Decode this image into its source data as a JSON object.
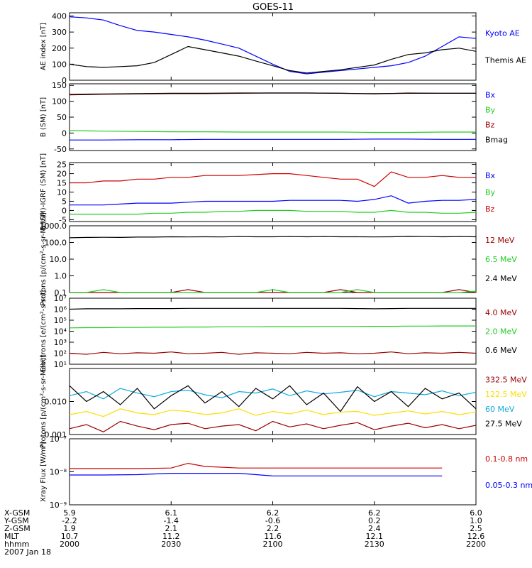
{
  "title": "GOES-11",
  "colors": {
    "black": "#000000",
    "blue": "#0000ff",
    "green": "#22cc22",
    "red": "#cc0000",
    "darkred": "#990000",
    "yellow": "#ffdd00",
    "cyan": "#11aadd"
  },
  "footer": {
    "row_labels": [
      "X-GSM",
      "Y-GSM",
      "Z-GSM",
      "MLT",
      "hhmm",
      "2007 Jan 18"
    ],
    "columns": [
      {
        "time": "2000",
        "values": [
          "5.9",
          "-2.2",
          "1.9",
          "10.7"
        ]
      },
      {
        "time": "2030",
        "values": [
          "6.1",
          "-1.4",
          "2.1",
          "11.2"
        ]
      },
      {
        "time": "2100",
        "values": [
          "6.2",
          "-0.6",
          "2.2",
          "11.6"
        ]
      },
      {
        "time": "2130",
        "values": [
          "6.2",
          "0.2",
          "2.4",
          "12.1"
        ]
      },
      {
        "time": "2200",
        "values": [
          "6.0",
          "1.0",
          "2.5",
          "12.6"
        ]
      }
    ]
  },
  "chart_data": [
    {
      "type": "line",
      "ylabel": "AE index [nT]",
      "scale": "linear",
      "ylim": [
        0,
        420
      ],
      "yticks": [
        {
          "v": 0,
          "t": "0"
        },
        {
          "v": 100,
          "t": "100"
        },
        {
          "v": 200,
          "t": "200"
        },
        {
          "v": 300,
          "t": "300"
        },
        {
          "v": 400,
          "t": "400"
        }
      ],
      "x": [
        0,
        5,
        10,
        15,
        20,
        25,
        30,
        35,
        40,
        45,
        50,
        55,
        60,
        65,
        70,
        75,
        80,
        85,
        90,
        95,
        100,
        105,
        110,
        115,
        120
      ],
      "series": [
        {
          "name": "Kyoto AE",
          "color": "blue",
          "values": [
            395,
            388,
            375,
            340,
            310,
            300,
            285,
            270,
            250,
            225,
            200,
            150,
            100,
            55,
            40,
            50,
            60,
            70,
            80,
            90,
            110,
            150,
            210,
            270,
            260
          ]
        },
        {
          "name": "Themis AE",
          "color": "black",
          "values": [
            100,
            85,
            80,
            85,
            90,
            110,
            160,
            210,
            190,
            170,
            150,
            120,
            90,
            60,
            45,
            55,
            65,
            80,
            95,
            130,
            160,
            170,
            190,
            200,
            180
          ]
        }
      ]
    },
    {
      "type": "line",
      "ylabel": "B (SM) [nT]",
      "scale": "linear",
      "ylim": [
        -55,
        155
      ],
      "yticks": [
        {
          "v": -50,
          "t": "-50"
        },
        {
          "v": 0,
          "t": "0"
        },
        {
          "v": 50,
          "t": "50"
        },
        {
          "v": 100,
          "t": "100"
        },
        {
          "v": 150,
          "t": "150"
        }
      ],
      "x": [
        0,
        10,
        20,
        30,
        40,
        50,
        60,
        70,
        80,
        90,
        100,
        110,
        120
      ],
      "series": [
        {
          "name": "Bx",
          "color": "blue",
          "values": [
            -22,
            -22,
            -21,
            -21,
            -20,
            -20,
            -20,
            -20,
            -20,
            -19,
            -19,
            -20,
            -20
          ]
        },
        {
          "name": "By",
          "color": "green",
          "values": [
            8,
            6,
            5,
            4,
            4,
            3,
            3,
            3,
            3,
            2,
            2,
            3,
            3
          ]
        },
        {
          "name": "Bz",
          "color": "darkred",
          "values": [
            120,
            122,
            123,
            124,
            124,
            125,
            126,
            126,
            125,
            123,
            126,
            125,
            125
          ]
        },
        {
          "name": "Bmag",
          "color": "black",
          "values": [
            122,
            123,
            124,
            125,
            125,
            126,
            126,
            126,
            125,
            124,
            125,
            125,
            125
          ]
        }
      ]
    },
    {
      "type": "line",
      "ylabel": "B (SM)-IGRF (SM) [nT]",
      "scale": "linear",
      "ylim": [
        -6,
        26
      ],
      "yticks": [
        {
          "v": -5,
          "t": "-5"
        },
        {
          "v": 0,
          "t": "0"
        },
        {
          "v": 5,
          "t": "5"
        },
        {
          "v": 10,
          "t": "10"
        },
        {
          "v": 15,
          "t": "15"
        },
        {
          "v": 20,
          "t": "20"
        },
        {
          "v": 25,
          "t": "25"
        }
      ],
      "x": [
        0,
        5,
        10,
        15,
        20,
        25,
        30,
        35,
        40,
        45,
        50,
        55,
        60,
        65,
        70,
        75,
        80,
        85,
        90,
        95,
        100,
        105,
        110,
        115,
        120
      ],
      "series": [
        {
          "name": "Bx",
          "color": "blue",
          "values": [
            3,
            3,
            3,
            3.5,
            4,
            4,
            4,
            4.5,
            5,
            5,
            5,
            5,
            5,
            5.5,
            5.5,
            5.5,
            5.5,
            5,
            6,
            8,
            4,
            5,
            5.5,
            5.5,
            6
          ]
        },
        {
          "name": "By",
          "color": "green",
          "values": [
            -2,
            -2,
            -2,
            -2,
            -2,
            -1.5,
            -1.5,
            -1,
            -1,
            -0.5,
            -0.5,
            0,
            0,
            0,
            -0.5,
            -0.5,
            -0.5,
            -1,
            -1,
            0,
            -1,
            -1,
            -1.5,
            -1.5,
            -1
          ]
        },
        {
          "name": "Bz",
          "color": "red",
          "values": [
            15,
            15,
            16,
            16,
            17,
            17,
            18,
            18,
            19,
            19,
            19,
            19.5,
            20,
            20,
            19,
            18,
            17,
            17,
            13,
            21,
            18,
            18,
            19,
            18,
            18
          ]
        }
      ]
    },
    {
      "type": "line",
      "ylabel": "Protons [p/(cm²-s-sr-MeV)]",
      "scale": "log",
      "ylim": [
        0.1,
        1000
      ],
      "yticks": [
        {
          "v": 0.1,
          "t": "0.1"
        },
        {
          "v": 1,
          "t": "1.0"
        },
        {
          "v": 10,
          "t": "10.0"
        },
        {
          "v": 100,
          "t": "100.0"
        },
        {
          "v": 1000,
          "t": "1000.0"
        }
      ],
      "x": [
        0,
        5,
        10,
        15,
        20,
        25,
        30,
        35,
        40,
        45,
        50,
        55,
        60,
        65,
        70,
        75,
        80,
        85,
        90,
        95,
        100,
        105,
        110,
        115,
        120
      ],
      "series": [
        {
          "name": "12 MeV",
          "color": "darkred",
          "values": [
            0.1,
            0.1,
            0.1,
            0.1,
            0.1,
            0.1,
            0.1,
            0.15,
            0.1,
            0.1,
            0.1,
            0.1,
            0.1,
            0.1,
            0.1,
            0.1,
            0.15,
            0.1,
            0.1,
            0.1,
            0.1,
            0.1,
            0.1,
            0.15,
            0.1
          ]
        },
        {
          "name": "6.5 MeV",
          "color": "green",
          "values": [
            0.1,
            0.1,
            0.15,
            0.1,
            0.1,
            0.1,
            0.1,
            0.1,
            0.1,
            0.1,
            0.1,
            0.1,
            0.15,
            0.1,
            0.1,
            0.1,
            0.1,
            0.15,
            0.1,
            0.1,
            0.1,
            0.1,
            0.1,
            0.1,
            0.12
          ]
        },
        {
          "name": "2.4 MeV",
          "color": "black",
          "values": [
            190,
            200,
            205,
            200,
            210,
            210,
            220,
            215,
            220,
            215,
            225,
            220,
            220,
            225,
            220,
            225,
            220,
            220,
            215,
            220,
            230,
            225,
            220,
            225,
            220
          ]
        }
      ]
    },
    {
      "type": "line",
      "ylabel": "Electrons [e/(cm²-s-sr)]",
      "scale": "log",
      "ylim": [
        10,
        10000000
      ],
      "yticks": [
        {
          "v": 10,
          "t": "10¹"
        },
        {
          "v": 100,
          "t": "10²"
        },
        {
          "v": 1000,
          "t": "10³"
        },
        {
          "v": 10000,
          "t": "10⁴"
        },
        {
          "v": 100000,
          "t": "10⁵"
        },
        {
          "v": 1000000,
          "t": "10⁶"
        },
        {
          "v": 10000000,
          "t": "10⁷"
        }
      ],
      "x": [
        0,
        5,
        10,
        15,
        20,
        25,
        30,
        35,
        40,
        45,
        50,
        55,
        60,
        65,
        70,
        75,
        80,
        85,
        90,
        95,
        100,
        105,
        110,
        115,
        120
      ],
      "series": [
        {
          "name": "4.0 MeV",
          "color": "darkred",
          "values": [
            100,
            80,
            120,
            90,
            110,
            100,
            130,
            90,
            100,
            120,
            80,
            110,
            100,
            90,
            120,
            100,
            110,
            90,
            100,
            130,
            90,
            110,
            100,
            120,
            100
          ]
        },
        {
          "name": "2.0 MeV",
          "color": "green",
          "values": [
            20000,
            21000,
            21000,
            22000,
            22000,
            23000,
            23000,
            24000,
            24000,
            25000,
            25000,
            25000,
            26000,
            26000,
            26000,
            27000,
            27000,
            27000,
            28000,
            28000,
            29000,
            29000,
            30000,
            30000,
            30000
          ]
        },
        {
          "name": "0.6 MeV",
          "color": "black",
          "values": [
            1000000,
            1100000,
            1100000,
            1100000,
            1150000,
            1150000,
            1150000,
            1200000,
            1200000,
            1200000,
            1200000,
            1200000,
            1200000,
            1200000,
            1200000,
            1200000,
            1200000,
            1150000,
            1100000,
            1150000,
            1200000,
            1200000,
            1200000,
            1200000,
            1200000
          ]
        }
      ]
    },
    {
      "type": "line",
      "ylabel": "Protons [p/(cm²-s-sr-MeV)]",
      "scale": "log",
      "ylim": [
        0.001,
        0.1
      ],
      "yticks": [
        {
          "v": 0.001,
          "t": "0.001"
        },
        {
          "v": 0.01,
          "t": "0.010"
        }
      ],
      "x": [
        0,
        5,
        10,
        15,
        20,
        25,
        30,
        35,
        40,
        45,
        50,
        55,
        60,
        65,
        70,
        75,
        80,
        85,
        90,
        95,
        100,
        105,
        110,
        115,
        120
      ],
      "series": [
        {
          "name": "332.5 MeV",
          "color": "darkred",
          "values": [
            0.0015,
            0.002,
            0.0012,
            0.0025,
            0.0018,
            0.0014,
            0.002,
            0.0022,
            0.0015,
            0.0018,
            0.002,
            0.0013,
            0.0025,
            0.0017,
            0.0021,
            0.0015,
            0.0019,
            0.0023,
            0.0014,
            0.0018,
            0.0022,
            0.0016,
            0.002,
            0.0015,
            0.0019
          ]
        },
        {
          "name": "122.5 MeV",
          "color": "yellow",
          "values": [
            0.004,
            0.005,
            0.0035,
            0.006,
            0.0045,
            0.004,
            0.0055,
            0.005,
            0.004,
            0.0045,
            0.006,
            0.0038,
            0.005,
            0.0042,
            0.0055,
            0.004,
            0.0048,
            0.005,
            0.0038,
            0.0045,
            0.0052,
            0.0042,
            0.005,
            0.004,
            0.0048
          ]
        },
        {
          "name": "60 MeV",
          "color": "cyan",
          "values": [
            0.015,
            0.02,
            0.012,
            0.025,
            0.018,
            0.014,
            0.02,
            0.022,
            0.016,
            0.013,
            0.02,
            0.018,
            0.024,
            0.015,
            0.021,
            0.017,
            0.019,
            0.022,
            0.014,
            0.02,
            0.018,
            0.016,
            0.021,
            0.015,
            0.019
          ]
        },
        {
          "name": "27.5 MeV",
          "color": "black",
          "values": [
            0.03,
            0.01,
            0.02,
            0.008,
            0.025,
            0.006,
            0.015,
            0.03,
            0.009,
            0.02,
            0.007,
            0.025,
            0.012,
            0.03,
            0.008,
            0.018,
            0.005,
            0.028,
            0.01,
            0.02,
            0.007,
            0.025,
            0.012,
            0.018,
            0.006
          ]
        }
      ]
    },
    {
      "type": "line",
      "ylabel": "Xray Flux [W/m²]",
      "scale": "log",
      "ylim": [
        1e-09,
        1e-07
      ],
      "yticks": [
        {
          "v": 1e-09,
          "t": "10⁻⁹"
        },
        {
          "v": 1e-08,
          "t": "10⁻⁸"
        },
        {
          "v": 1e-07,
          "t": "10⁻⁷"
        }
      ],
      "x": [
        0,
        10,
        20,
        30,
        35,
        40,
        50,
        60,
        70,
        80,
        90,
        100,
        110
      ],
      "series": [
        {
          "name": "0.1-0.8 nm",
          "color": "red",
          "values": [
            1.25e-08,
            1.25e-08,
            1.25e-08,
            1.3e-08,
            1.8e-08,
            1.45e-08,
            1.3e-08,
            1.3e-08,
            1.3e-08,
            1.3e-08,
            1.3e-08,
            1.3e-08,
            1.3e-08
          ]
        },
        {
          "name": "0.05-0.3 nm",
          "color": "blue",
          "values": [
            8e-09,
            8e-09,
            8.2e-09,
            9e-09,
            9e-09,
            9e-09,
            9e-09,
            7.5e-09,
            7.5e-09,
            7.5e-09,
            7.5e-09,
            7.5e-09,
            7.5e-09
          ]
        }
      ]
    }
  ]
}
